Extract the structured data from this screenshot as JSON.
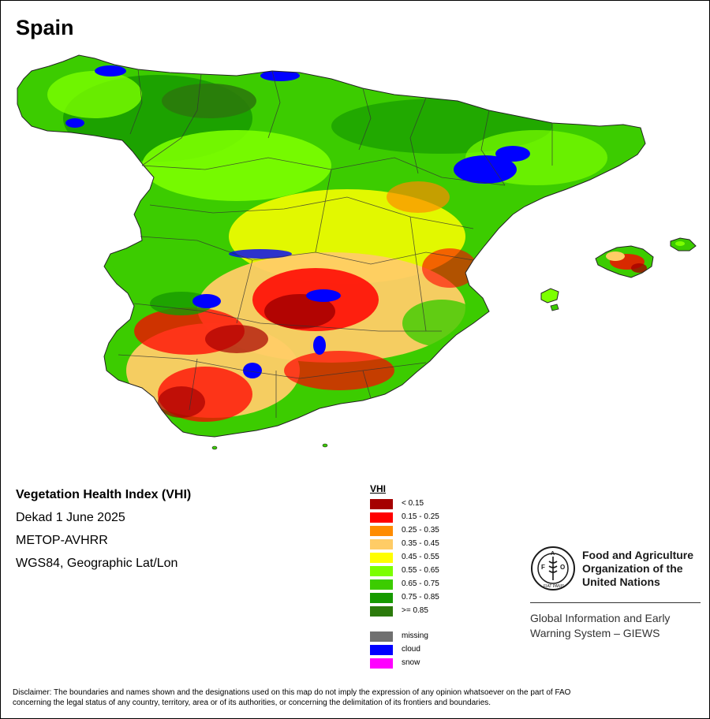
{
  "map": {
    "title": "Spain",
    "info": {
      "index_name": "Vegetation Health Index (VHI)",
      "period": "Dekad 1 June 2025",
      "sensor": "METOP-AVHRR",
      "projection": "WGS84, Geographic Lat/Lon"
    },
    "legend": {
      "title": "VHI",
      "classes": [
        {
          "label": "< 0.15",
          "color": "#a50000"
        },
        {
          "label": "0.15 - 0.25",
          "color": "#ff0000"
        },
        {
          "label": "0.25 - 0.35",
          "color": "#ff8c00"
        },
        {
          "label": "0.35 - 0.45",
          "color": "#ffcc66"
        },
        {
          "label": "0.45 - 0.55",
          "color": "#ffff00"
        },
        {
          "label": "0.55 - 0.65",
          "color": "#7cff00"
        },
        {
          "label": "0.65 - 0.75",
          "color": "#3ccc00"
        },
        {
          "label": "0.75 - 0.85",
          "color": "#169a00"
        },
        {
          "label": ">= 0.85",
          "color": "#2b7a0b"
        }
      ],
      "extra": [
        {
          "label": "missing",
          "color": "#707070"
        },
        {
          "label": "cloud",
          "color": "#0000ff"
        },
        {
          "label": "snow",
          "color": "#ff00ff"
        }
      ]
    }
  },
  "org": {
    "logo_text": "FAO",
    "logo_motto": "FIAT PANIS",
    "name_lines": [
      "Food and Agriculture",
      "Organization of the",
      "United Nations"
    ],
    "system_lines": [
      "Global Information and Early",
      "Warning System – GIEWS"
    ]
  },
  "disclaimer": {
    "line1": "Disclaimer: The boundaries and names shown and the designations used on this map do not imply the expression of any opinion whatsoever on the part of FAO",
    "line2": "concerning the legal status of any country, territory, area or of its authorities, or concerning the delimitation of its frontiers and boundaries."
  }
}
